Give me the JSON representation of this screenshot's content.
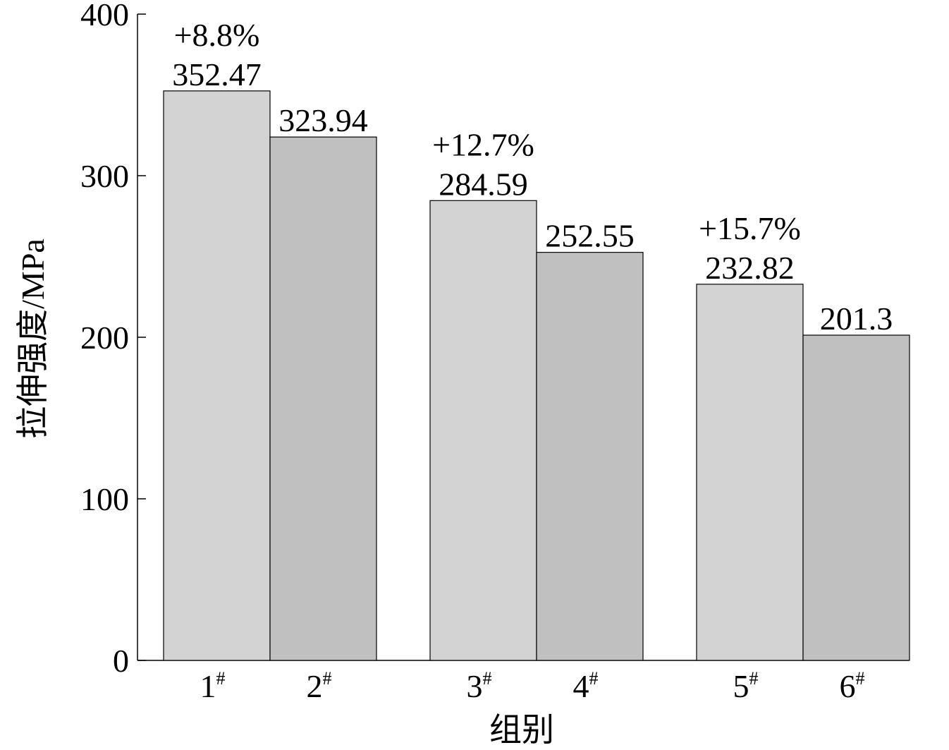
{
  "chart_data": {
    "type": "bar",
    "y_label": "拉伸强度/MPa",
    "x_label": "组别",
    "categories": [
      "1#",
      "2#",
      "3#",
      "4#",
      "5#",
      "6#"
    ],
    "values": [
      352.47,
      323.94,
      284.59,
      252.55,
      232.82,
      201.3
    ],
    "annotations": [
      "+8.8%",
      null,
      "+12.7%",
      null,
      "+15.7%",
      null
    ],
    "colors": [
      "#d3d3d3",
      "#c0c0c0",
      "#d3d3d3",
      "#c0c0c0",
      "#d3d3d3",
      "#c0c0c0"
    ],
    "ylim": [
      0,
      400
    ],
    "yticks": [
      0,
      100,
      200,
      300,
      400
    ],
    "grid": false
  }
}
